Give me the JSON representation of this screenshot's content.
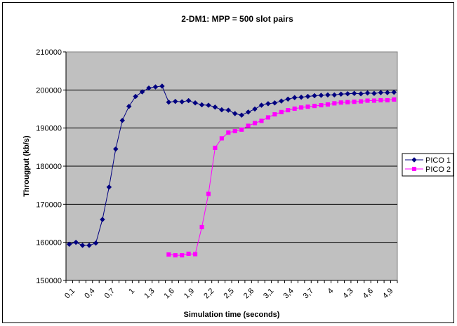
{
  "chart_data": {
    "type": "line",
    "title": "2-DM1: MPP = 500 slot pairs",
    "xlabel": "Simulation time (seconds)",
    "ylabel": "Througput (kb/s)",
    "ylim": [
      150000,
      210000
    ],
    "yticks": [
      "150000",
      "160000",
      "170000",
      "180000",
      "190000",
      "200000",
      "210000"
    ],
    "grid": true,
    "legend_position": "right",
    "x": [
      0.1,
      0.2,
      0.3,
      0.4,
      0.5,
      0.6,
      0.7,
      0.8,
      0.9,
      1.0,
      1.1,
      1.2,
      1.3,
      1.4,
      1.5,
      1.6,
      1.7,
      1.8,
      1.9,
      2.0,
      2.1,
      2.2,
      2.3,
      2.4,
      2.5,
      2.6,
      2.7,
      2.8,
      2.9,
      3.0,
      3.1,
      3.2,
      3.3,
      3.4,
      3.5,
      3.6,
      3.7,
      3.8,
      3.9,
      4.0,
      4.1,
      4.2,
      4.3,
      4.4,
      4.5,
      4.6,
      4.7,
      4.8,
      4.9,
      5.0
    ],
    "xtick_labels": [
      "0,1",
      "0,4",
      "0,7",
      "1",
      "1,3",
      "1,6",
      "1,9",
      "2,2",
      "2,5",
      "2,8",
      "3,1",
      "3,4",
      "3,7",
      "4",
      "4,3",
      "4,6",
      "4,9"
    ],
    "series": [
      {
        "name": "PICO 1",
        "color": "#000080",
        "marker": "diamond",
        "values": [
          159500,
          160000,
          159200,
          159200,
          159800,
          166000,
          174500,
          184500,
          192000,
          195700,
          198300,
          199500,
          200500,
          200800,
          201000,
          196800,
          197000,
          196900,
          197200,
          196600,
          196100,
          196000,
          195500,
          194800,
          194700,
          193800,
          193400,
          194200,
          195000,
          196000,
          196400,
          196600,
          197100,
          197600,
          198000,
          198100,
          198300,
          198500,
          198600,
          198700,
          198700,
          198900,
          199000,
          199100,
          199000,
          199200,
          199100,
          199300,
          199300,
          199400
        ]
      },
      {
        "name": "PICO 2",
        "color": "#FF00FF",
        "marker": "square",
        "values": [
          null,
          null,
          null,
          null,
          null,
          null,
          null,
          null,
          null,
          null,
          null,
          null,
          null,
          null,
          null,
          156800,
          156600,
          156600,
          157000,
          156900,
          164000,
          172700,
          184800,
          187300,
          188800,
          189200,
          189600,
          190600,
          191300,
          191900,
          192800,
          193600,
          194200,
          194700,
          195100,
          195400,
          195600,
          195800,
          196000,
          196200,
          196500,
          196700,
          196800,
          196900,
          197000,
          197200,
          197200,
          197300,
          197300,
          197500
        ]
      }
    ]
  }
}
